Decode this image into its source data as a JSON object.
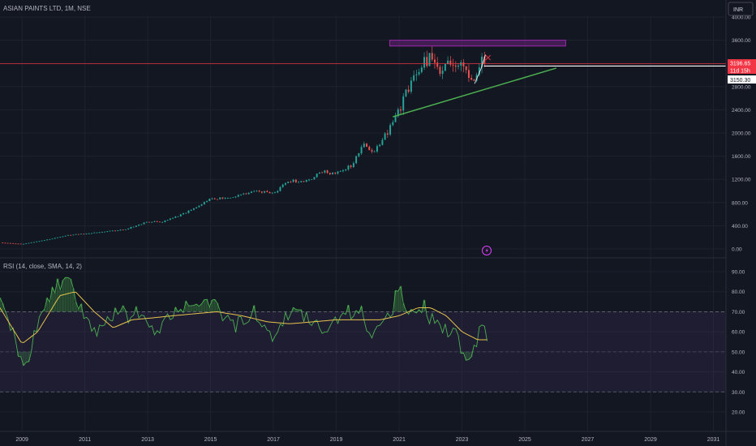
{
  "header": {
    "symbol_title": "ASIAN PAINTS LTD, 1M, NSE",
    "currency_button": "INR"
  },
  "colors": {
    "background": "#131722",
    "grid": "#1e222d",
    "text": "#b2b5be",
    "candle_up": "#26a69a",
    "candle_down": "#ef5350",
    "resistance_box": "#9c27b0",
    "trendline": "#4caf50",
    "rsi_line": "#4caf50",
    "rsi_sma": "#e6c34c",
    "rsi_band": "#7e57c2",
    "price_tag": "#f23645",
    "level_tag": "#ffffff"
  },
  "chart_data": [
    {
      "type": "candlestick",
      "interval": "1M",
      "x_axis_labels": [
        "2009",
        "2011",
        "2013",
        "2015",
        "2017",
        "2019",
        "2021",
        "2023",
        "2025",
        "2027",
        "2029",
        "2031"
      ],
      "y_axis_labels": [
        "0.00",
        "400.00",
        "800.00",
        "1200.00",
        "1600.00",
        "2000.00",
        "2400.00",
        "2800.00",
        "3200.00",
        "3600.00",
        "4000.00"
      ],
      "ylim": [
        0,
        4000
      ],
      "xlim": [
        2008.3,
        2031.4
      ],
      "last_price": "3196.65",
      "countdown": "11d 15h",
      "level_label": "3150.30",
      "anchors": [
        [
          2008.3,
          110
        ],
        [
          2009.0,
          85
        ],
        [
          2009.7,
          150
        ],
        [
          2010.5,
          240
        ],
        [
          2011.5,
          290
        ],
        [
          2012.3,
          340
        ],
        [
          2013.0,
          470
        ],
        [
          2013.5,
          470
        ],
        [
          2014.2,
          620
        ],
        [
          2015.0,
          870
        ],
        [
          2015.6,
          880
        ],
        [
          2016.5,
          1000
        ],
        [
          2017.0,
          960
        ],
        [
          2017.5,
          1180
        ],
        [
          2018.0,
          1150
        ],
        [
          2018.6,
          1350
        ],
        [
          2018.9,
          1290
        ],
        [
          2019.5,
          1450
        ],
        [
          2019.9,
          1820
        ],
        [
          2020.2,
          1650
        ],
        [
          2020.7,
          2100
        ],
        [
          2021.1,
          2500
        ],
        [
          2021.4,
          2900
        ],
        [
          2021.7,
          3200
        ],
        [
          2022.0,
          3300
        ],
        [
          2022.4,
          3050
        ],
        [
          2022.7,
          3250
        ],
        [
          2023.0,
          3100
        ],
        [
          2023.4,
          2900
        ],
        [
          2023.6,
          3300
        ],
        [
          2023.75,
          3196
        ]
      ],
      "resistance_zone": {
        "x": [
          2020.7,
          2026.3
        ],
        "y": [
          3500,
          3600
        ]
      },
      "support_trendline": {
        "from": [
          2020.8,
          2280
        ],
        "to": [
          2026.0,
          3120
        ]
      },
      "horizontal_level": {
        "from": 2023.7,
        "value": 3196.65
      },
      "price_line": 3196.65
    },
    {
      "type": "line",
      "title": "RSI (14, close, SMA, 14, 2)",
      "y_axis_labels": [
        "20.00",
        "30.00",
        "40.00",
        "50.00",
        "60.00",
        "70.00",
        "80.00",
        "90.00"
      ],
      "ylim": [
        20,
        95
      ],
      "band": [
        30,
        70
      ],
      "midline": 50,
      "rsi_anchors": [
        [
          2008.3,
          74
        ],
        [
          2008.6,
          66
        ],
        [
          2008.9,
          48
        ],
        [
          2009.1,
          42
        ],
        [
          2009.4,
          58
        ],
        [
          2009.7,
          72
        ],
        [
          2010.0,
          80
        ],
        [
          2010.3,
          86
        ],
        [
          2010.6,
          82
        ],
        [
          2010.9,
          70
        ],
        [
          2011.2,
          62
        ],
        [
          2011.5,
          60
        ],
        [
          2011.8,
          68
        ],
        [
          2012.1,
          72
        ],
        [
          2012.4,
          66
        ],
        [
          2012.7,
          70
        ],
        [
          2013.0,
          62
        ],
        [
          2013.3,
          58
        ],
        [
          2013.6,
          66
        ],
        [
          2013.9,
          72
        ],
        [
          2014.2,
          74
        ],
        [
          2014.6,
          70
        ],
        [
          2014.9,
          74
        ],
        [
          2015.1,
          78
        ],
        [
          2015.4,
          68
        ],
        [
          2015.7,
          62
        ],
        [
          2016.0,
          66
        ],
        [
          2016.4,
          70
        ],
        [
          2016.7,
          60
        ],
        [
          2017.0,
          56
        ],
        [
          2017.3,
          66
        ],
        [
          2017.6,
          70
        ],
        [
          2018.0,
          68
        ],
        [
          2018.4,
          66
        ],
        [
          2018.7,
          60
        ],
        [
          2019.0,
          64
        ],
        [
          2019.4,
          70
        ],
        [
          2019.8,
          72
        ],
        [
          2020.1,
          58
        ],
        [
          2020.4,
          64
        ],
        [
          2020.8,
          72
        ],
        [
          2020.95,
          82
        ],
        [
          2021.2,
          74
        ],
        [
          2021.5,
          70
        ],
        [
          2021.8,
          72
        ],
        [
          2022.1,
          64
        ],
        [
          2022.4,
          60
        ],
        [
          2022.7,
          62
        ],
        [
          2022.95,
          52
        ],
        [
          2023.2,
          48
        ],
        [
          2023.45,
          56
        ],
        [
          2023.65,
          62
        ],
        [
          2023.8,
          58
        ]
      ],
      "sma_anchors": [
        [
          2008.3,
          72
        ],
        [
          2009.0,
          54
        ],
        [
          2009.5,
          60
        ],
        [
          2010.2,
          78
        ],
        [
          2010.7,
          80
        ],
        [
          2011.3,
          70
        ],
        [
          2011.9,
          62
        ],
        [
          2012.5,
          66
        ],
        [
          2013.2,
          67
        ],
        [
          2013.8,
          68
        ],
        [
          2014.5,
          69
        ],
        [
          2015.2,
          70
        ],
        [
          2016.0,
          68
        ],
        [
          2016.8,
          65
        ],
        [
          2017.5,
          64
        ],
        [
          2018.3,
          65
        ],
        [
          2019.0,
          66
        ],
        [
          2019.7,
          66
        ],
        [
          2020.4,
          66
        ],
        [
          2021.0,
          68
        ],
        [
          2021.6,
          72
        ],
        [
          2022.0,
          72
        ],
        [
          2022.5,
          68
        ],
        [
          2023.0,
          60
        ],
        [
          2023.5,
          56
        ],
        [
          2023.8,
          56
        ]
      ]
    }
  ]
}
